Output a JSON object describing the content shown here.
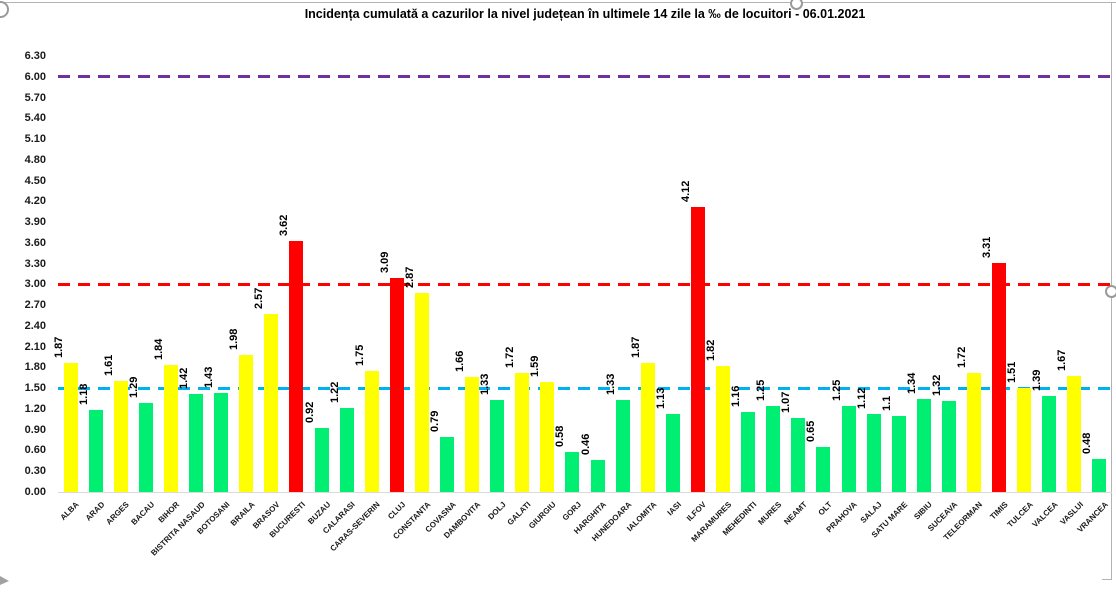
{
  "chart_data": {
    "type": "bar",
    "title": "Incidența cumulată a cazurilor la nivel județean în ultimele 14 zile la ‰ de locuitori - 06.01.2021",
    "xlabel": "",
    "ylabel": "",
    "ylim": [
      0,
      6.3
    ],
    "grid": "off",
    "legend": "none",
    "y_ticks": [
      "0.00",
      "0.30",
      "0.60",
      "0.90",
      "1.20",
      "1.50",
      "1.80",
      "2.10",
      "2.40",
      "2.70",
      "3.00",
      "3.30",
      "3.60",
      "3.90",
      "4.20",
      "4.50",
      "4.80",
      "5.10",
      "5.40",
      "5.70",
      "6.00",
      "6.30"
    ],
    "categories": [
      "ALBA",
      "ARAD",
      "ARGES",
      "BACAU",
      "BIHOR",
      "BISTRITA NASAUD",
      "BOTOSANI",
      "BRAILA",
      "BRASOV",
      "BUCURESTI",
      "BUZAU",
      "CALARASI",
      "CARAS-SEVERIN",
      "CLUJ",
      "CONSTANTA",
      "COVASNA",
      "DAMBOVITA",
      "DOLJ",
      "GALATI",
      "GIURGIU",
      "GORJ",
      "HARGHITA",
      "HUNEDOARA",
      "IALOMITA",
      "IASI",
      "ILFOV",
      "MARAMURES",
      "MEHEDINTI",
      "MURES",
      "NEAMT",
      "OLT",
      "PRAHOVA",
      "SALAJ",
      "SATU MARE",
      "SIBIU",
      "SUCEAVA",
      "TELEORMAN",
      "TIMIS",
      "TULCEA",
      "VALCEA",
      "VASLUI",
      "VRANCEA"
    ],
    "values": [
      1.87,
      1.18,
      1.61,
      1.29,
      1.84,
      1.42,
      1.43,
      1.98,
      2.57,
      3.62,
      0.92,
      1.22,
      1.75,
      3.09,
      2.87,
      0.79,
      1.66,
      1.33,
      1.72,
      1.59,
      0.58,
      0.46,
      1.33,
      1.87,
      1.13,
      4.12,
      1.82,
      1.16,
      1.25,
      1.07,
      0.65,
      1.25,
      1.12,
      1.1,
      1.34,
      1.32,
      1.72,
      3.31,
      1.51,
      1.39,
      1.67,
      0.48
    ],
    "value_labels": [
      "1.87",
      "1.18",
      "1.61",
      "1.29",
      "1.84",
      "1.42",
      "1.43",
      "1.98",
      "2.57",
      "3.62",
      "0.92",
      "1.22",
      "1.75",
      "3.09",
      "2.87",
      "0.79",
      "1.66",
      "1.33",
      "1.72",
      "1.59",
      "0.58",
      "0.46",
      "1.33",
      "1.87",
      "1.13",
      "4.12",
      "1.82",
      "1.16",
      "1.25",
      "1.07",
      "0.65",
      "1.25",
      "1.12",
      "1.1",
      "1.34",
      "1.32",
      "1.72",
      "3.31",
      "1.51",
      "1.39",
      "1.67",
      "0.48"
    ],
    "bar_colors": [
      "yellow",
      "green",
      "yellow",
      "green",
      "yellow",
      "green",
      "green",
      "yellow",
      "yellow",
      "red",
      "green",
      "green",
      "yellow",
      "red",
      "yellow",
      "green",
      "yellow",
      "green",
      "yellow",
      "yellow",
      "green",
      "green",
      "green",
      "yellow",
      "green",
      "red",
      "yellow",
      "green",
      "green",
      "green",
      "green",
      "green",
      "green",
      "green",
      "green",
      "green",
      "yellow",
      "red",
      "yellow",
      "green",
      "yellow",
      "green"
    ],
    "palette": {
      "yellow": "#FFFF00",
      "green": "#00EE72",
      "red": "#FF0000"
    },
    "reference_lines": [
      {
        "value": 1.5,
        "color": "#00B0F0",
        "style": "dashed"
      },
      {
        "value": 3.0,
        "color": "#FF0000",
        "style": "dashed"
      },
      {
        "value": 6.0,
        "color": "#7030A0",
        "style": "dashed"
      }
    ]
  }
}
